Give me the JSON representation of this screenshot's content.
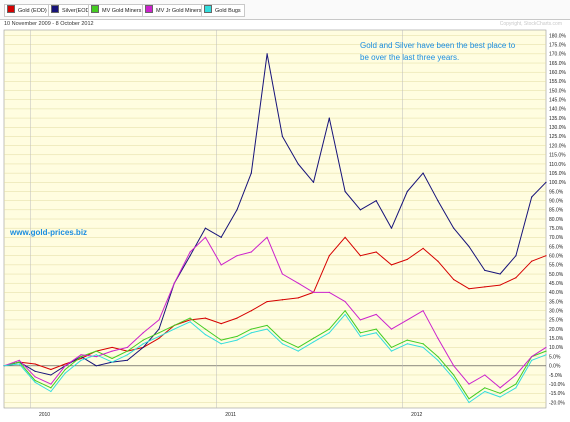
{
  "legend": [
    {
      "label": "Gold (EOD)",
      "color": "#d60000"
    },
    {
      "label": "Silver(EOD)",
      "color": "#17137a"
    },
    {
      "label": "MV Gold Miners",
      "color": "#44cc22"
    },
    {
      "label": "MV Jr Gold Miners",
      "color": "#cc22cc"
    },
    {
      "label": "Gold Bugs",
      "color": "#33dddd"
    }
  ],
  "date_range": "10 November 2009 - 8 October 2012",
  "copyright": "Copyright, StockCharts.com",
  "annotation_lines": [
    "Gold and Silver have been the best place to",
    "be over the last three years."
  ],
  "watermark": "www.gold-prices.biz",
  "chart_data": {
    "type": "line",
    "x": [
      "2009-11-10",
      "2009-12-10",
      "2010-01-10",
      "2010-02-10",
      "2010-03-10",
      "2010-04-10",
      "2010-05-10",
      "2010-06-10",
      "2010-07-10",
      "2010-08-10",
      "2010-09-10",
      "2010-10-10",
      "2010-11-10",
      "2010-12-10",
      "2011-01-10",
      "2011-02-10",
      "2011-03-10",
      "2011-04-10",
      "2011-05-10",
      "2011-06-10",
      "2011-07-10",
      "2011-08-10",
      "2011-09-10",
      "2011-10-10",
      "2011-11-10",
      "2011-12-10",
      "2012-01-10",
      "2012-02-10",
      "2012-03-10",
      "2012-04-10",
      "2012-05-10",
      "2012-06-10",
      "2012-07-10",
      "2012-08-10",
      "2012-09-10",
      "2012-10-08"
    ],
    "series": [
      {
        "name": "Gold (EOD)",
        "color": "#d60000",
        "values": [
          0,
          2,
          1,
          -2,
          1,
          4,
          8,
          10,
          8,
          10,
          15,
          22,
          25,
          26,
          23,
          26,
          30,
          35,
          36,
          37,
          40,
          60,
          70,
          60,
          62,
          55,
          58,
          64,
          57,
          47,
          42,
          43,
          44,
          48,
          57,
          60
        ]
      },
      {
        "name": "Silver(EOD)",
        "color": "#17137a",
        "values": [
          0,
          2,
          -3,
          -5,
          0,
          5,
          0,
          2,
          3,
          10,
          20,
          45,
          60,
          75,
          70,
          85,
          105,
          170,
          125,
          110,
          100,
          135,
          95,
          85,
          90,
          75,
          95,
          105,
          90,
          75,
          65,
          52,
          50,
          60,
          92,
          100
        ]
      },
      {
        "name": "MV Gold Miners",
        "color": "#44cc22",
        "values": [
          0,
          2,
          -8,
          -12,
          -2,
          5,
          8,
          4,
          8,
          14,
          18,
          22,
          26,
          20,
          14,
          16,
          20,
          22,
          14,
          10,
          15,
          20,
          30,
          18,
          20,
          10,
          14,
          12,
          5,
          -5,
          -18,
          -12,
          -15,
          -10,
          5,
          8
        ]
      },
      {
        "name": "MV Jr Gold Miners",
        "color": "#cc22cc",
        "values": [
          0,
          3,
          -6,
          -10,
          0,
          6,
          5,
          8,
          10,
          18,
          25,
          45,
          62,
          70,
          55,
          60,
          62,
          70,
          50,
          45,
          40,
          40,
          35,
          25,
          28,
          20,
          25,
          30,
          15,
          0,
          -10,
          -5,
          -12,
          -5,
          5,
          10
        ]
      },
      {
        "name": "Gold Bugs",
        "color": "#33dddd",
        "values": [
          0,
          1,
          -9,
          -14,
          -4,
          3,
          6,
          2,
          6,
          12,
          16,
          20,
          24,
          17,
          12,
          14,
          18,
          20,
          12,
          8,
          13,
          18,
          28,
          16,
          18,
          8,
          12,
          10,
          3,
          -7,
          -20,
          -14,
          -17,
          -12,
          3,
          6
        ]
      }
    ],
    "yticks": [
      "180.0%",
      "175.0%",
      "170.0%",
      "165.0%",
      "160.0%",
      "155.0%",
      "150.0%",
      "145.0%",
      "140.0%",
      "135.0%",
      "130.0%",
      "125.0%",
      "120.0%",
      "115.0%",
      "110.0%",
      "105.0%",
      "100.0%",
      "95.0%",
      "90.0%",
      "85.0%",
      "80.0%",
      "75.0%",
      "70.0%",
      "65.0%",
      "60.0%",
      "55.0%",
      "50.0%",
      "45.0%",
      "40.0%",
      "35.0%",
      "30.0%",
      "25.0%",
      "20.0%",
      "15.0%",
      "10.0%",
      "5.0%",
      "0.0%",
      "-5.0%",
      "-10.0%",
      "-15.0%",
      "-20.0%"
    ],
    "ylim": [
      -23,
      183
    ],
    "xticks": [
      {
        "label": "2010",
        "date": "2010-01-01"
      },
      {
        "label": "2011",
        "date": "2011-01-01"
      },
      {
        "label": "2012",
        "date": "2012-01-01"
      }
    ],
    "grid": true,
    "legend_position": "top"
  }
}
